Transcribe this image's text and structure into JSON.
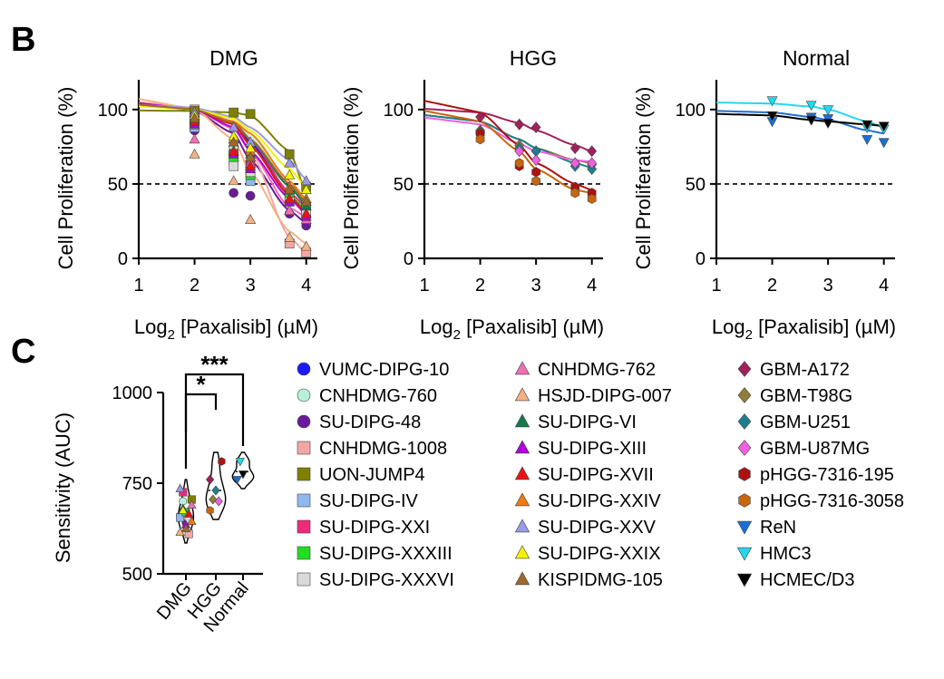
{
  "panels": {
    "B": "B",
    "C": "C"
  },
  "chart_data": [
    {
      "type": "line",
      "title": "DMG",
      "xlabel_main": "Log",
      "xlabel_sub": "2",
      "xlabel_rest": " [Paxalisib] (µM)",
      "ylabel": "Cell Proliferation (%)",
      "xlim": [
        1,
        4.2
      ],
      "ylim": [
        0,
        120
      ],
      "xticks": [
        1,
        2,
        3,
        4
      ],
      "yticks": [
        0,
        50,
        100
      ],
      "reference_line": 50,
      "x": [
        2,
        2.7,
        3,
        3.7,
        4
      ],
      "series": [
        {
          "name": "VUMC-DIPG-10",
          "color": "#1a1aff",
          "marker": "circle",
          "curve": [
            100,
            91,
            78,
            42,
            30
          ],
          "values": [
            91,
            72,
            60,
            38,
            28
          ]
        },
        {
          "name": "CNHDMG-760",
          "color": "#b7f0d8",
          "marker": "circle",
          "curve": [
            101,
            92,
            82,
            50,
            37
          ],
          "values": [
            93,
            75,
            65,
            44,
            36
          ]
        },
        {
          "name": "SU-DIPG-48",
          "color": "#6a1b9a",
          "marker": "circle",
          "curve": [
            99,
            84,
            66,
            32,
            24
          ],
          "values": [
            86,
            44,
            42,
            30,
            22
          ]
        },
        {
          "name": "CNHDMG-1008",
          "color": "#f4a6a6",
          "marker": "square",
          "curve": [
            101,
            90,
            72,
            14,
            4
          ],
          "values": [
            100,
            70,
            58,
            10,
            4
          ]
        },
        {
          "name": "UON-JUMP4",
          "color": "#808000",
          "marker": "square",
          "curve": [
            99,
            98,
            96,
            72,
            45
          ],
          "values": [
            99,
            98,
            97,
            70,
            48
          ]
        },
        {
          "name": "SU-DIPG-IV",
          "color": "#8fb9ef",
          "marker": "square",
          "curve": [
            100,
            90,
            76,
            42,
            33
          ],
          "values": [
            88,
            70,
            52,
            40,
            34
          ]
        },
        {
          "name": "SU-DIPG-XXI",
          "color": "#ee2a7b",
          "marker": "square",
          "curve": [
            100,
            92,
            80,
            44,
            35
          ],
          "values": [
            95,
            70,
            62,
            42,
            34
          ]
        },
        {
          "name": "SU-DIPG-XXXIII",
          "color": "#22dd22",
          "marker": "square",
          "curve": [
            100,
            90,
            76,
            42,
            33
          ],
          "values": [
            92,
            66,
            56,
            40,
            33
          ]
        },
        {
          "name": "SU-DIPG-XXXVI",
          "color": "#d9d9d9",
          "marker": "square",
          "curve": [
            100,
            88,
            72,
            40,
            30
          ],
          "values": [
            90,
            62,
            58,
            38,
            30
          ]
        },
        {
          "name": "CNHDMG-762",
          "color": "#f06fb5",
          "marker": "triangle-up",
          "curve": [
            100,
            87,
            72,
            34,
            28
          ],
          "values": [
            80,
            72,
            64,
            32,
            26
          ]
        },
        {
          "name": "HSJD-DIPG-007",
          "color": "#f4b183",
          "marker": "triangle-up",
          "curve": [
            100,
            80,
            58,
            18,
            10
          ],
          "values": [
            70,
            52,
            26,
            14,
            8
          ]
        },
        {
          "name": "SU-DIPG-VI",
          "color": "#137a4e",
          "marker": "triangle-up",
          "curve": [
            100,
            91,
            80,
            48,
            36
          ],
          "values": [
            93,
            80,
            70,
            46,
            35
          ]
        },
        {
          "name": "SU-DIPG-XIII",
          "color": "#b000dc",
          "marker": "triangle-up",
          "curve": [
            100,
            88,
            72,
            40,
            30
          ],
          "values": [
            90,
            70,
            60,
            38,
            28
          ]
        },
        {
          "name": "SU-DIPG-XVII",
          "color": "#ee1111",
          "marker": "triangle-up",
          "curve": [
            100,
            90,
            76,
            42,
            31
          ],
          "values": [
            92,
            72,
            62,
            40,
            30
          ]
        },
        {
          "name": "SU-DIPG-XXIV",
          "color": "#f07a10",
          "marker": "triangle-up",
          "curve": [
            100,
            92,
            84,
            52,
            40
          ],
          "values": [
            95,
            80,
            72,
            48,
            40
          ]
        },
        {
          "name": "SU-DIPG-XXV",
          "color": "#9a9ae6",
          "marker": "triangle-up",
          "curve": [
            101,
            95,
            88,
            66,
            53
          ],
          "values": [
            98,
            88,
            78,
            64,
            52
          ]
        },
        {
          "name": "SU-DIPG-XXIX",
          "color": "#f2f200",
          "marker": "triangle-up",
          "curve": [
            100,
            94,
            86,
            60,
            48
          ],
          "values": [
            96,
            82,
            74,
            56,
            46
          ]
        },
        {
          "name": "KISPIDMG-105",
          "color": "#9c6a2c",
          "marker": "triangle-up",
          "curve": [
            100,
            91,
            80,
            50,
            38
          ],
          "values": [
            94,
            78,
            68,
            46,
            38
          ]
        }
      ]
    },
    {
      "type": "line",
      "title": "HGG",
      "xlabel_main": "Log",
      "xlabel_sub": "2",
      "xlabel_rest": " [Paxalisib] (µM)",
      "ylabel": "Cell Proliferation (%)",
      "xlim": [
        1,
        4.2
      ],
      "ylim": [
        0,
        120
      ],
      "xticks": [
        1,
        2,
        3,
        4
      ],
      "yticks": [
        0,
        50,
        100
      ],
      "reference_line": 50,
      "x": [
        2,
        2.7,
        3,
        3.7,
        4
      ],
      "series": [
        {
          "name": "GBM-A172",
          "color": "#a0205a",
          "marker": "diamond",
          "curve": [
            98,
            91,
            86,
            76,
            72
          ],
          "values": [
            95,
            90,
            88,
            74,
            72
          ]
        },
        {
          "name": "GBM-T98G",
          "color": "#8f7f3a",
          "marker": "diamond",
          "curve": [
            92,
            80,
            74,
            66,
            64
          ],
          "values": [
            86,
            76,
            72,
            64,
            63
          ]
        },
        {
          "name": "GBM-U251",
          "color": "#1e7f8c",
          "marker": "diamond",
          "curve": [
            92,
            80,
            74,
            64,
            61
          ],
          "values": [
            85,
            74,
            72,
            62,
            60
          ]
        },
        {
          "name": "GBM-U87MG",
          "color": "#f060e0",
          "marker": "diamond",
          "curve": [
            90,
            77,
            72,
            66,
            65
          ],
          "values": [
            84,
            72,
            66,
            64,
            64
          ]
        },
        {
          "name": "pHGG-7316-195",
          "color": "#b01010",
          "marker": "hexagon",
          "curve": [
            98,
            76,
            64,
            50,
            46
          ],
          "values": [
            84,
            62,
            58,
            48,
            44
          ]
        },
        {
          "name": "pHGG-7316-3058",
          "color": "#c8650d",
          "marker": "hexagon",
          "curve": [
            92,
            72,
            60,
            46,
            44
          ],
          "values": [
            80,
            64,
            52,
            44,
            40
          ]
        }
      ]
    },
    {
      "type": "line",
      "title": "Normal",
      "xlabel_main": "Log",
      "xlabel_sub": "2",
      "xlabel_rest": " [Paxalisib] (µM)",
      "ylabel": "Cell Proliferation (%)",
      "xlim": [
        1,
        4.2
      ],
      "ylim": [
        0,
        120
      ],
      "xticks": [
        1,
        2,
        3,
        4
      ],
      "yticks": [
        0,
        50,
        100
      ],
      "reference_line": 50,
      "x": [
        2,
        2.7,
        3,
        3.7,
        4
      ],
      "series": [
        {
          "name": "ReN",
          "color": "#1a6fd6",
          "marker": "triangle-down",
          "curve": [
            98,
            95,
            93,
            86,
            84
          ],
          "values": [
            92,
            95,
            94,
            80,
            78
          ]
        },
        {
          "name": "HMC3",
          "color": "#22d8f0",
          "marker": "triangle-down",
          "curve": [
            104,
            102,
            100,
            92,
            88
          ],
          "values": [
            106,
            103,
            100,
            88,
            87
          ]
        },
        {
          "name": "HCMEC/D3",
          "color": "#000000",
          "marker": "triangle-down",
          "curve": [
            96,
            93,
            92,
            90,
            89
          ],
          "values": [
            96,
            93,
            91,
            90,
            89
          ]
        }
      ]
    },
    {
      "type": "violin",
      "ylabel": "Sensitivity (AUC)",
      "ylim": [
        500,
        1000
      ],
      "yticks": [
        500,
        750,
        1000
      ],
      "yticklabels": [
        "500",
        "750",
        "1000"
      ],
      "categories": [
        "DMG",
        "HGG",
        "Normal"
      ],
      "significance": [
        {
          "from": "DMG",
          "to": "HGG",
          "label": "*"
        },
        {
          "from": "DMG",
          "to": "Normal",
          "label": "***"
        }
      ],
      "points": {
        "DMG": [
          {
            "name": "VUMC-DIPG-10",
            "value": 660
          },
          {
            "name": "CNHDMG-760",
            "value": 700
          },
          {
            "name": "SU-DIPG-48",
            "value": 640
          },
          {
            "name": "CNHDMG-1008",
            "value": 610
          },
          {
            "name": "UON-JUMP4",
            "value": 705
          },
          {
            "name": "SU-DIPG-IV",
            "value": 655
          },
          {
            "name": "SU-DIPG-XXI",
            "value": 725
          },
          {
            "name": "SU-DIPG-XXXIII",
            "value": 670
          },
          {
            "name": "SU-DIPG-XXXVI",
            "value": 650
          },
          {
            "name": "CNHDMG-762",
            "value": 690
          },
          {
            "name": "HSJD-DIPG-007",
            "value": 615
          },
          {
            "name": "SU-DIPG-VI",
            "value": 680
          },
          {
            "name": "SU-DIPG-XIII",
            "value": 635
          },
          {
            "name": "SU-DIPG-XVII",
            "value": 665
          },
          {
            "name": "SU-DIPG-XXIV",
            "value": 645
          },
          {
            "name": "SU-DIPG-XXV",
            "value": 735
          },
          {
            "name": "SU-DIPG-XXIX",
            "value": 675
          },
          {
            "name": "KISPIDMG-105",
            "value": 625
          }
        ],
        "HGG": [
          {
            "name": "GBM-A172",
            "value": 760
          },
          {
            "name": "GBM-T98G",
            "value": 705
          },
          {
            "name": "GBM-U251",
            "value": 730
          },
          {
            "name": "GBM-U87MG",
            "value": 700
          },
          {
            "name": "pHGG-7316-195",
            "value": 810
          },
          {
            "name": "pHGG-7316-3058",
            "value": 675
          }
        ],
        "Normal": [
          {
            "name": "ReN",
            "value": 760
          },
          {
            "name": "HMC3",
            "value": 810
          },
          {
            "name": "HCMEC/D3",
            "value": 775
          }
        ]
      }
    }
  ],
  "legend": [
    {
      "name": "VUMC-DIPG-10",
      "color": "#1a1aff",
      "marker": "circle"
    },
    {
      "name": "CNHDMG-760",
      "color": "#b7f0d8",
      "marker": "circle"
    },
    {
      "name": "SU-DIPG-48",
      "color": "#6a1b9a",
      "marker": "circle"
    },
    {
      "name": "CNHDMG-1008",
      "color": "#f4a6a6",
      "marker": "square"
    },
    {
      "name": "UON-JUMP4",
      "color": "#808000",
      "marker": "square"
    },
    {
      "name": "SU-DIPG-IV",
      "color": "#8fb9ef",
      "marker": "square"
    },
    {
      "name": "SU-DIPG-XXI",
      "color": "#ee2a7b",
      "marker": "square"
    },
    {
      "name": "SU-DIPG-XXXIII",
      "color": "#22dd22",
      "marker": "square"
    },
    {
      "name": "SU-DIPG-XXXVI",
      "color": "#d9d9d9",
      "marker": "square"
    },
    {
      "name": "CNHDMG-762",
      "color": "#f06fb5",
      "marker": "triangle-up"
    },
    {
      "name": "HSJD-DIPG-007",
      "color": "#f4b183",
      "marker": "triangle-up"
    },
    {
      "name": "SU-DIPG-VI",
      "color": "#137a4e",
      "marker": "triangle-up"
    },
    {
      "name": "SU-DIPG-XIII",
      "color": "#b000dc",
      "marker": "triangle-up"
    },
    {
      "name": "SU-DIPG-XVII",
      "color": "#ee1111",
      "marker": "triangle-up"
    },
    {
      "name": "SU-DIPG-XXIV",
      "color": "#f07a10",
      "marker": "triangle-up"
    },
    {
      "name": "SU-DIPG-XXV",
      "color": "#9a9ae6",
      "marker": "triangle-up"
    },
    {
      "name": "SU-DIPG-XXIX",
      "color": "#f2f200",
      "marker": "triangle-up"
    },
    {
      "name": "KISPIDMG-105",
      "color": "#9c6a2c",
      "marker": "triangle-up"
    },
    {
      "name": "GBM-A172",
      "color": "#a0205a",
      "marker": "diamond"
    },
    {
      "name": "GBM-T98G",
      "color": "#8f7f3a",
      "marker": "diamond"
    },
    {
      "name": "GBM-U251",
      "color": "#1e7f8c",
      "marker": "diamond"
    },
    {
      "name": "GBM-U87MG",
      "color": "#f060e0",
      "marker": "diamond"
    },
    {
      "name": "pHGG-7316-195",
      "color": "#b01010",
      "marker": "hexagon"
    },
    {
      "name": "pHGG-7316-3058",
      "color": "#c8650d",
      "marker": "hexagon"
    },
    {
      "name": "ReN",
      "color": "#1a6fd6",
      "marker": "triangle-down"
    },
    {
      "name": "HMC3",
      "color": "#22d8f0",
      "marker": "triangle-down"
    },
    {
      "name": "HCMEC/D3",
      "color": "#000000",
      "marker": "triangle-down"
    }
  ]
}
